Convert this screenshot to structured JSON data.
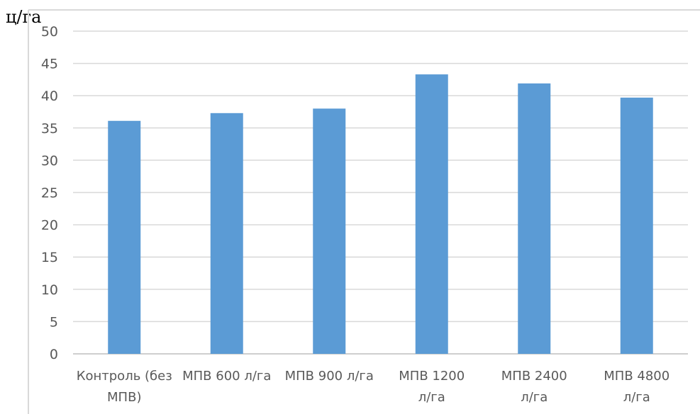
{
  "chart_data": {
    "type": "bar",
    "ylabel": "ц/га",
    "categories": [
      [
        "Контроль (без",
        "МПВ)"
      ],
      [
        "МПВ 600 л/га"
      ],
      [
        "МПВ 900 л/га"
      ],
      [
        "МПВ 1200",
        "л/га"
      ],
      [
        "МПВ 2400",
        "л/га"
      ],
      [
        "МПВ 4800",
        "л/га"
      ]
    ],
    "values": [
      36.1,
      37.3,
      38.0,
      43.3,
      41.9,
      39.7
    ],
    "ylim": [
      0,
      50
    ],
    "yticks": [
      0,
      5,
      10,
      15,
      20,
      25,
      30,
      35,
      40,
      45,
      50
    ],
    "grid": true,
    "legend": "none",
    "colors": {
      "bar": "#5B9BD5",
      "grid": "#D9D9D9",
      "tick_text": "#595959",
      "frame": "#D9D9D9"
    }
  }
}
